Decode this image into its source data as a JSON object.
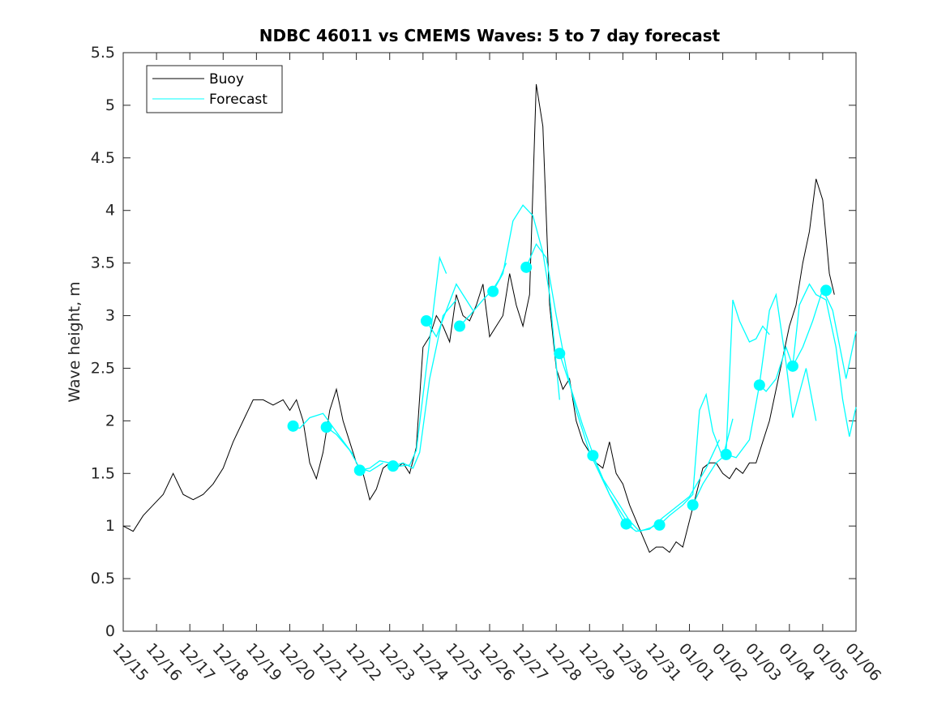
{
  "chart_data": {
    "type": "line",
    "title": "NDBC 46011 vs CMEMS Waves: 5 to 7 day forecast",
    "xlabel": "",
    "ylabel": "Wave height, m",
    "xlim": [
      0,
      22
    ],
    "ylim": [
      0,
      5.5
    ],
    "x_tick_labels": [
      "12/15",
      "12/16",
      "12/17",
      "12/18",
      "12/19",
      "12/20",
      "12/21",
      "12/22",
      "12/23",
      "12/24",
      "12/25",
      "12/26",
      "12/27",
      "12/28",
      "12/29",
      "12/30",
      "12/31",
      "01/01",
      "01/02",
      "01/03",
      "01/04",
      "01/05",
      "01/06"
    ],
    "y_ticks": [
      0,
      0.5,
      1,
      1.5,
      2,
      2.5,
      3,
      3.5,
      4,
      4.5,
      5,
      5.5
    ],
    "y_tick_labels": [
      "0",
      "0.5",
      "1",
      "1.5",
      "2",
      "2.5",
      "3",
      "3.5",
      "4",
      "4.5",
      "5",
      "5.5"
    ],
    "legend": {
      "position": "top-left",
      "entries": [
        "Buoy",
        "Forecast"
      ]
    },
    "colors": {
      "buoy": "#000000",
      "forecast": "#00ffff",
      "axis": "#262626"
    },
    "series": [
      {
        "name": "Buoy",
        "x": [
          0,
          0.3,
          0.6,
          0.9,
          1.2,
          1.5,
          1.8,
          2.1,
          2.4,
          2.7,
          3.0,
          3.3,
          3.6,
          3.9,
          4.2,
          4.5,
          4.8,
          5.0,
          5.2,
          5.4,
          5.6,
          5.8,
          6.0,
          6.2,
          6.4,
          6.6,
          6.8,
          7.0,
          7.2,
          7.4,
          7.6,
          7.8,
          8.0,
          8.2,
          8.4,
          8.6,
          8.8,
          9.0,
          9.2,
          9.4,
          9.6,
          9.8,
          10.0,
          10.2,
          10.4,
          10.6,
          10.8,
          11.0,
          11.2,
          11.4,
          11.6,
          11.8,
          12.0,
          12.2,
          12.4,
          12.6,
          12.8,
          13.0,
          13.2,
          13.4,
          13.6,
          13.8,
          14.0,
          14.2,
          14.4,
          14.6,
          14.8,
          15.0,
          15.2,
          15.4,
          15.6,
          15.8,
          16.0,
          16.2,
          16.4,
          16.6,
          16.8,
          17.0,
          17.2,
          17.4,
          17.6,
          17.8,
          18.0,
          18.2,
          18.4,
          18.6,
          18.8,
          19.0,
          19.2,
          19.4,
          19.6,
          19.8,
          20.0,
          20.2,
          20.4,
          20.6,
          20.8,
          21.0,
          21.2,
          21.35
        ],
        "y": [
          1.0,
          0.95,
          1.1,
          1.2,
          1.3,
          1.5,
          1.3,
          1.25,
          1.3,
          1.4,
          1.55,
          1.8,
          2.0,
          2.2,
          2.2,
          2.15,
          2.2,
          2.1,
          2.2,
          2.0,
          1.6,
          1.45,
          1.7,
          2.1,
          2.3,
          2.0,
          1.8,
          1.6,
          1.5,
          1.25,
          1.35,
          1.55,
          1.6,
          1.55,
          1.6,
          1.5,
          1.75,
          2.7,
          2.8,
          3.0,
          2.9,
          2.75,
          3.2,
          3.0,
          2.95,
          3.1,
          3.3,
          2.8,
          2.9,
          3.0,
          3.4,
          3.1,
          2.9,
          3.2,
          5.2,
          4.8,
          3.1,
          2.5,
          2.3,
          2.4,
          2.0,
          1.8,
          1.7,
          1.6,
          1.55,
          1.8,
          1.5,
          1.4,
          1.2,
          1.05,
          0.9,
          0.75,
          0.8,
          0.8,
          0.75,
          0.85,
          0.8,
          1.05,
          1.3,
          1.55,
          1.6,
          1.6,
          1.5,
          1.45,
          1.55,
          1.5,
          1.6,
          1.6,
          1.8,
          2.0,
          2.3,
          2.6,
          2.9,
          3.1,
          3.5,
          3.8,
          4.3,
          4.1,
          3.4,
          3.2
        ]
      },
      {
        "name": "Forecast",
        "segments": [
          {
            "x": [
              5.05,
              5.3,
              5.6,
              6.0,
              6.5,
              6.9
            ],
            "y": [
              1.95,
              1.93,
              2.03,
              2.07,
              1.85,
              1.68
            ]
          },
          {
            "x": [
              6.1,
              6.4,
              6.8,
              7.1,
              7.4,
              7.8
            ],
            "y": [
              1.94,
              1.87,
              1.72,
              1.55,
              1.52,
              1.6
            ]
          },
          {
            "x": [
              7.1,
              7.4,
              7.7,
              8.0,
              8.3,
              8.6,
              8.8,
              9.1,
              9.5,
              9.7
            ],
            "y": [
              1.53,
              1.55,
              1.62,
              1.6,
              1.57,
              1.58,
              1.72,
              2.5,
              3.55,
              3.4
            ]
          },
          {
            "x": [
              8.1,
              8.4,
              8.7,
              8.9,
              9.2,
              9.6,
              10.0
            ],
            "y": [
              1.57,
              1.6,
              1.55,
              1.7,
              2.4,
              3.0,
              3.15
            ]
          },
          {
            "x": [
              9.1,
              9.4,
              9.7,
              10.0,
              10.2,
              10.5
            ],
            "y": [
              2.95,
              2.8,
              3.05,
              3.3,
              3.2,
              3.05
            ]
          },
          {
            "x": [
              10.1,
              10.4,
              10.8,
              11.1,
              11.3,
              11.5
            ],
            "y": [
              2.9,
              3.0,
              3.15,
              3.25,
              3.35,
              3.5
            ]
          },
          {
            "x": [
              11.1,
              11.4,
              11.7,
              12.0,
              12.3,
              12.6,
              12.8,
              13.1
            ],
            "y": [
              3.23,
              3.4,
              3.9,
              4.05,
              3.95,
              3.6,
              3.2,
              2.2
            ]
          },
          {
            "x": [
              12.1,
              12.4,
              12.7,
              13.0,
              13.3,
              13.6,
              14.0,
              14.6,
              15.1
            ],
            "y": [
              3.46,
              3.68,
              3.55,
              3.0,
              2.5,
              2.1,
              1.7,
              1.3,
              1.05
            ]
          },
          {
            "x": [
              13.1,
              13.4,
              13.8,
              14.2,
              14.6,
              15.0,
              15.3
            ],
            "y": [
              2.64,
              2.35,
              1.95,
              1.6,
              1.3,
              1.05,
              0.98
            ]
          },
          {
            "x": [
              14.1,
              14.4,
              14.8,
              15.2,
              15.5,
              15.8,
              16.1
            ],
            "y": [
              1.67,
              1.45,
              1.25,
              1.05,
              0.95,
              0.98,
              1.02
            ]
          },
          {
            "x": [
              15.1,
              15.4,
              15.8,
              16.2,
              16.6,
              17.0,
              17.5,
              17.9
            ],
            "y": [
              1.02,
              0.95,
              0.97,
              1.08,
              1.18,
              1.28,
              1.55,
              1.82
            ]
          },
          {
            "x": [
              16.1,
              16.4,
              16.8,
              17.1,
              17.3,
              17.5,
              17.7,
              18.0,
              18.3
            ],
            "y": [
              1.01,
              1.1,
              1.2,
              1.3,
              2.1,
              2.25,
              1.9,
              1.65,
              2.02
            ]
          },
          {
            "x": [
              17.1,
              17.4,
              17.8,
              18.1,
              18.3,
              18.5,
              18.8,
              19.0,
              19.2,
              19.4
            ],
            "y": [
              1.2,
              1.4,
              1.6,
              1.68,
              3.15,
              2.95,
              2.75,
              2.78,
              2.9,
              2.82
            ]
          },
          {
            "x": [
              18.1,
              18.4,
              18.8,
              19.1,
              19.4,
              19.6,
              19.9,
              20.1,
              20.5,
              20.8
            ],
            "y": [
              1.68,
              1.65,
              1.82,
              2.34,
              3.05,
              3.2,
              2.55,
              2.03,
              2.5,
              2.0
            ]
          },
          {
            "x": [
              19.1,
              19.3,
              19.6,
              19.9,
              20.1,
              20.3,
              20.6,
              20.8,
              21.1,
              21.4,
              21.6,
              21.8,
              22.0
            ],
            "y": [
              2.34,
              2.28,
              2.4,
              2.7,
              2.52,
              3.1,
              3.3,
              3.2,
              3.15,
              2.7,
              2.2,
              1.85,
              2.13
            ]
          },
          {
            "x": [
              20.1,
              20.4,
              20.7,
              21.0,
              21.3,
              21.7,
              22.0
            ],
            "y": [
              2.52,
              2.7,
              2.95,
              3.25,
              3.05,
              2.4,
              2.85
            ]
          }
        ],
        "markers": {
          "x": [
            5.1,
            6.1,
            7.1,
            8.1,
            9.1,
            10.1,
            11.1,
            12.1,
            13.1,
            14.1,
            15.1,
            16.1,
            17.1,
            18.1,
            19.1,
            20.1,
            21.1
          ],
          "y": [
            1.95,
            1.94,
            1.53,
            1.57,
            2.95,
            2.9,
            3.23,
            3.46,
            2.64,
            1.67,
            1.02,
            1.01,
            1.2,
            1.68,
            2.34,
            2.52,
            3.24
          ]
        }
      }
    ]
  }
}
